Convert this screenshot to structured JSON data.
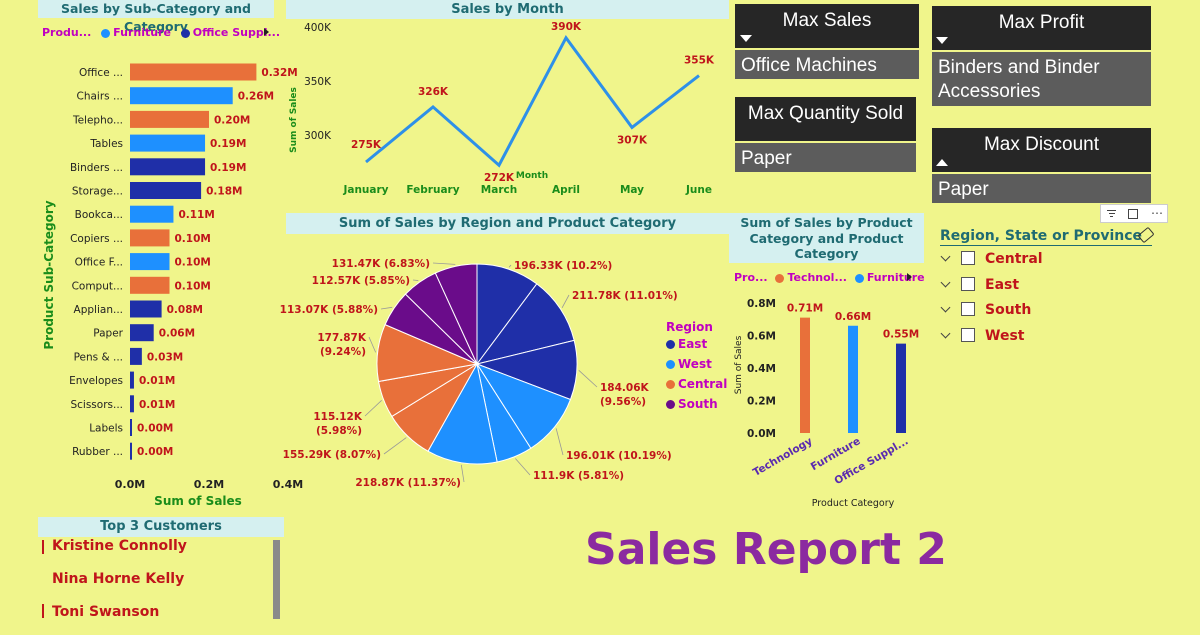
{
  "colors": {
    "background": "#f0f58b",
    "technology": "#e8703a",
    "furniture": "#1e90ff",
    "office_supplies": "#1f2fa8",
    "south": "#6a0c8a",
    "label_red": "#c0151b",
    "axis_green": "#1a8c1a",
    "line_blue": "#2e90e8",
    "title_purple": "#8b2aa0"
  },
  "subcat_chart": {
    "title": "Sales by Sub-Category and Category",
    "legend_title": "Produ...",
    "legend": [
      {
        "name": "Furniture",
        "color": "#1e90ff"
      },
      {
        "name": "Office Suppl...",
        "color": "#1f2fa8"
      }
    ],
    "ylabel": "Product Sub-Category",
    "xlabel": "Sum of Sales",
    "xticks": [
      "0.0M",
      "0.2M",
      "0.4M"
    ]
  },
  "month_chart": {
    "title": "Sales by Month",
    "ylabel": "Sum of Sales",
    "xlabel": "Month",
    "yticks": [
      "400K",
      "350K",
      "300K"
    ]
  },
  "region_chart": {
    "title": "Sum of Sales by Region and Product Category",
    "legend_title": "Region",
    "legend": [
      {
        "name": "East",
        "color": "#1f2fa8"
      },
      {
        "name": "West",
        "color": "#1e90ff"
      },
      {
        "name": "Central",
        "color": "#e8703a"
      },
      {
        "name": "South",
        "color": "#6a0c8a"
      }
    ]
  },
  "category_chart": {
    "title": "Sum of Sales by Product Category and Product Category",
    "title_lines": [
      "Sum of Sales by Product",
      "Category and Product",
      "Category"
    ],
    "legend_title": "Pro...",
    "legend": [
      {
        "name": "Technol...",
        "color": "#e8703a"
      },
      {
        "name": "Furniture",
        "color": "#1e90ff"
      }
    ],
    "ylabel": "Sum of Sales",
    "xlabel": "Product Category",
    "yticks": [
      "0.8M",
      "0.6M",
      "0.4M",
      "0.2M",
      "0.0M"
    ]
  },
  "cards": {
    "max_sales": {
      "title": "Max Sales",
      "value": "Office Machines"
    },
    "max_profit": {
      "title": "Max Profit",
      "value": "Binders and Binder Accessories"
    },
    "max_qty": {
      "title": "Max Quantity Sold",
      "value": "Paper"
    },
    "max_discount": {
      "title": "Max Discount",
      "value": "Paper"
    }
  },
  "slicer": {
    "title": "Region, State or Province",
    "items": [
      "Central",
      "East",
      "South",
      "West"
    ]
  },
  "top_customers": {
    "title": "Top 3 Customers",
    "names": [
      "Kristine Connolly",
      "Nina Horne Kelly",
      "Toni Swanson"
    ]
  },
  "report_title": "Sales Report 2",
  "chart_data": [
    {
      "type": "bar",
      "orientation": "horizontal",
      "title": "Sales by Sub-Category and Category",
      "xlabel": "Sum of Sales",
      "ylabel": "Product Sub-Category",
      "xlim": [
        0,
        0.4
      ],
      "categories": [
        "Office ...",
        "Chairs ...",
        "Telepho...",
        "Tables",
        "Binders ...",
        "Storage...",
        "Bookca...",
        "Copiers ...",
        "Office F...",
        "Comput...",
        "Applian...",
        "Paper",
        "Pens & ...",
        "Envelopes",
        "Scissors...",
        "Labels",
        "Rubber ..."
      ],
      "values": [
        0.32,
        0.26,
        0.2,
        0.19,
        0.19,
        0.18,
        0.11,
        0.1,
        0.1,
        0.1,
        0.08,
        0.06,
        0.03,
        0.01,
        0.01,
        0.004,
        0.002
      ],
      "data_labels": [
        "0.32M",
        "0.26M",
        "0.20M",
        "0.19M",
        "0.19M",
        "0.18M",
        "0.11M",
        "0.10M",
        "0.10M",
        "0.10M",
        "0.08M",
        "0.06M",
        "0.03M",
        "0.01M",
        "0.01M",
        "0.00M",
        "0.00M"
      ],
      "bar_colors": [
        "#e8703a",
        "#1e90ff",
        "#e8703a",
        "#1e90ff",
        "#1f2fa8",
        "#1f2fa8",
        "#1e90ff",
        "#e8703a",
        "#1e90ff",
        "#e8703a",
        "#1f2fa8",
        "#1f2fa8",
        "#1f2fa8",
        "#1f2fa8",
        "#1f2fa8",
        "#1f2fa8",
        "#1f2fa8"
      ],
      "legend": [
        "Furniture",
        "Office Suppl..."
      ]
    },
    {
      "type": "line",
      "title": "Sales by Month",
      "xlabel": "Month",
      "ylabel": "Sum of Sales",
      "ylim": [
        270,
        410
      ],
      "x": [
        "January",
        "February",
        "March",
        "April",
        "May",
        "June"
      ],
      "values": [
        275,
        326,
        272,
        390,
        307,
        355
      ],
      "data_labels": [
        "275K",
        "326K",
        "272K",
        "390K",
        "307K",
        "355K"
      ]
    },
    {
      "type": "pie",
      "title": "Sum of Sales by Region and Product Category",
      "legend": [
        "East",
        "West",
        "Central",
        "South"
      ],
      "slices": [
        {
          "label": "196.33K (10.2%)",
          "value": 196.33,
          "color": "#1f2fa8"
        },
        {
          "label": "211.78K (11.01%)",
          "value": 211.78,
          "color": "#1f2fa8"
        },
        {
          "label": "184.06K (9.56%)",
          "value": 184.06,
          "color": "#1f2fa8"
        },
        {
          "label": "196.01K (10.19%)",
          "value": 196.01,
          "color": "#1e90ff"
        },
        {
          "label": "111.9K (5.81%)",
          "value": 111.9,
          "color": "#1e90ff"
        },
        {
          "label": "218.87K (11.37%)",
          "value": 218.87,
          "color": "#1e90ff"
        },
        {
          "label": "155.29K (8.07%)",
          "value": 155.29,
          "color": "#e8703a"
        },
        {
          "label": "115.12K (5.98%)",
          "value": 115.12,
          "color": "#e8703a"
        },
        {
          "label": "177.87K (9.24%)",
          "value": 177.87,
          "color": "#e8703a"
        },
        {
          "label": "113.07K (5.88%)",
          "value": 113.07,
          "color": "#6a0c8a"
        },
        {
          "label": "112.57K (5.85%)",
          "value": 112.57,
          "color": "#6a0c8a"
        },
        {
          "label": "131.47K (6.83%)",
          "value": 131.47,
          "color": "#6a0c8a"
        }
      ]
    },
    {
      "type": "bar",
      "title": "Sum of Sales by Product Category and Product Category",
      "xlabel": "Product Category",
      "ylabel": "Sum of Sales",
      "ylim": [
        0,
        0.8
      ],
      "categories": [
        "Technology",
        "Furniture",
        "Office Suppl..."
      ],
      "values": [
        0.71,
        0.66,
        0.55
      ],
      "data_labels": [
        "0.71M",
        "0.66M",
        "0.55M"
      ],
      "bar_colors": [
        "#e8703a",
        "#1e90ff",
        "#1f2fa8"
      ],
      "legend": [
        "Technol...",
        "Furniture"
      ]
    }
  ]
}
